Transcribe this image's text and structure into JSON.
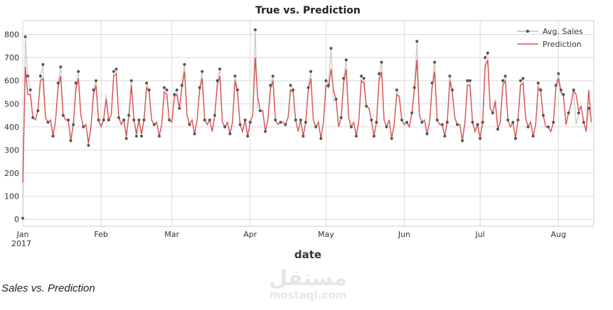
{
  "caption": "Sales vs. Prediction",
  "watermark": {
    "arabic": "مستقل",
    "latin": "mostaql.com"
  },
  "chart_data": {
    "type": "line",
    "title": "True vs. Prediction",
    "xlabel": "date",
    "ylabel": "",
    "ylim": [
      -30,
      860
    ],
    "xlim": [
      "2017-01-01",
      "2017-08-15"
    ],
    "yticks": [
      0,
      100,
      200,
      300,
      400,
      500,
      600,
      700,
      800
    ],
    "xticks": [
      {
        "date": "2017-01-01",
        "label": "Jan",
        "sublabel": "2017"
      },
      {
        "date": "2017-02-01",
        "label": "Feb",
        "sublabel": ""
      },
      {
        "date": "2017-03-01",
        "label": "Mar",
        "sublabel": ""
      },
      {
        "date": "2017-04-01",
        "label": "Apr",
        "sublabel": ""
      },
      {
        "date": "2017-05-01",
        "label": "May",
        "sublabel": ""
      },
      {
        "date": "2017-06-01",
        "label": "Jun",
        "sublabel": ""
      },
      {
        "date": "2017-07-01",
        "label": "Jul",
        "sublabel": ""
      },
      {
        "date": "2017-08-01",
        "label": "Aug",
        "sublabel": ""
      }
    ],
    "grid": true,
    "legend": "top-right",
    "x_start": "2017-01-01",
    "x_step": "1 day",
    "series": [
      {
        "name": "Avg. Sales",
        "color": "#555555",
        "line_color": "#c8c8c8",
        "marker": "dot",
        "values": [
          5,
          790,
          620,
          560,
          440,
          430,
          470,
          620,
          670,
          440,
          420,
          430,
          360,
          430,
          590,
          660,
          450,
          430,
          430,
          340,
          410,
          590,
          640,
          450,
          400,
          410,
          320,
          400,
          560,
          600,
          430,
          400,
          430,
          540,
          430,
          450,
          640,
          650,
          440,
          410,
          430,
          350,
          450,
          600,
          430,
          360,
          430,
          360,
          430,
          590,
          560,
          430,
          410,
          420,
          360,
          410,
          570,
          560,
          430,
          420,
          540,
          560,
          480,
          580,
          670,
          450,
          410,
          430,
          370,
          430,
          570,
          640,
          430,
          410,
          430,
          380,
          450,
          600,
          650,
          420,
          400,
          420,
          370,
          420,
          620,
          560,
          410,
          380,
          430,
          360,
          420,
          450,
          820,
          470,
          470,
          470,
          380,
          430,
          580,
          620,
          430,
          410,
          420,
          420,
          410,
          440,
          580,
          560,
          430,
          380,
          430,
          360,
          420,
          570,
          640,
          430,
          400,
          420,
          350,
          420,
          600,
          580,
          740,
          510,
          520,
          400,
          440,
          610,
          690,
          440,
          400,
          420,
          360,
          430,
          620,
          610,
          490,
          480,
          430,
          360,
          420,
          630,
          680,
          430,
          400,
          430,
          350,
          410,
          560,
          540,
          430,
          410,
          420,
          400,
          460,
          570,
          770,
          450,
          420,
          430,
          370,
          420,
          590,
          680,
          430,
          410,
          410,
          360,
          420,
          620,
          560,
          440,
          410,
          410,
          340,
          420,
          600,
          600,
          420,
          380,
          410,
          350,
          420,
          700,
          720,
          480,
          460,
          520,
          390,
          420,
          600,
          620,
          430,
          400,
          420,
          350,
          430,
          600,
          610,
          440,
          400,
          420,
          360,
          410,
          590,
          560,
          450,
          400,
          400,
          380,
          420,
          580,
          630,
          560,
          540,
          410,
          460,
          500,
          560,
          410,
          460,
          490,
          420,
          380,
          480,
          430
        ]
      },
      {
        "name": "Prediction",
        "color": "#d9534f",
        "values": [
          160,
          660,
          540,
          540,
          440,
          430,
          470,
          600,
          610,
          440,
          420,
          430,
          360,
          430,
          570,
          620,
          450,
          430,
          430,
          340,
          410,
          560,
          610,
          450,
          400,
          410,
          330,
          400,
          540,
          580,
          430,
          400,
          430,
          520,
          430,
          450,
          620,
          630,
          440,
          410,
          430,
          360,
          450,
          580,
          430,
          370,
          430,
          370,
          430,
          570,
          550,
          430,
          410,
          420,
          360,
          410,
          550,
          540,
          430,
          420,
          530,
          540,
          480,
          570,
          640,
          450,
          410,
          430,
          370,
          430,
          560,
          610,
          430,
          410,
          430,
          380,
          450,
          580,
          620,
          420,
          400,
          420,
          370,
          420,
          600,
          550,
          410,
          380,
          430,
          360,
          420,
          450,
          700,
          530,
          470,
          470,
          380,
          430,
          560,
          600,
          430,
          410,
          420,
          420,
          410,
          440,
          560,
          550,
          430,
          380,
          430,
          360,
          420,
          560,
          610,
          430,
          400,
          420,
          350,
          420,
          580,
          570,
          650,
          560,
          520,
          400,
          440,
          590,
          650,
          440,
          400,
          420,
          360,
          430,
          600,
          590,
          490,
          480,
          430,
          360,
          420,
          600,
          640,
          430,
          400,
          430,
          350,
          410,
          540,
          530,
          430,
          410,
          420,
          400,
          460,
          560,
          690,
          450,
          420,
          430,
          370,
          420,
          570,
          640,
          430,
          410,
          410,
          360,
          420,
          600,
          550,
          440,
          410,
          410,
          340,
          420,
          580,
          580,
          420,
          380,
          410,
          350,
          420,
          660,
          690,
          480,
          460,
          510,
          390,
          420,
          580,
          600,
          430,
          400,
          420,
          350,
          430,
          580,
          590,
          440,
          400,
          420,
          360,
          410,
          570,
          550,
          450,
          400,
          400,
          380,
          420,
          570,
          610,
          550,
          530,
          410,
          460,
          500,
          560,
          540,
          470,
          490,
          420,
          380,
          560,
          420
        ]
      }
    ]
  }
}
